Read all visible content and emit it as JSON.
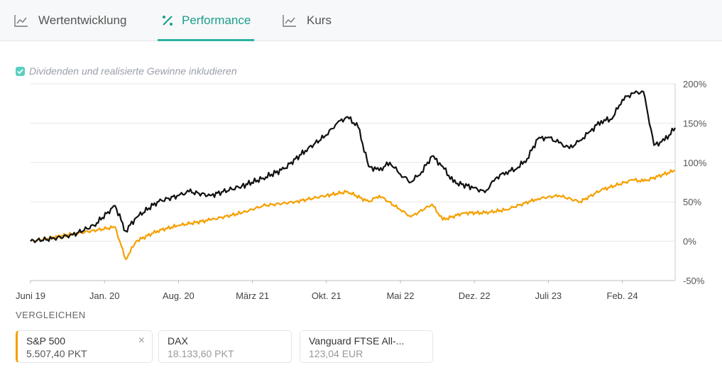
{
  "tabs": [
    {
      "label": "Wertentwicklung",
      "icon": "line-chart-icon"
    },
    {
      "label": "Performance",
      "icon": "percent-icon",
      "active": true
    },
    {
      "label": "Kurs",
      "icon": "line-chart-icon"
    }
  ],
  "checkbox": {
    "label": "Dividenden und realisierte Gewinne inkludieren",
    "checked": true
  },
  "compare": {
    "title": "VERGLEICHEN",
    "items": [
      {
        "name": "S&P 500",
        "value": "5.507,40 PKT",
        "selected": true,
        "color": "#f5a000"
      },
      {
        "name": "DAX",
        "value": "18.133,60 PKT"
      },
      {
        "name": "Vanguard FTSE All-...",
        "value": "123,04 EUR"
      }
    ]
  },
  "chart_data": {
    "type": "line",
    "x_ticks": [
      {
        "date": "2019-06",
        "label": "Juni 19"
      },
      {
        "date": "2020-01",
        "label": "Jan. 20"
      },
      {
        "date": "2020-08",
        "label": "Aug. 20"
      },
      {
        "date": "2021-03",
        "label": "März 21"
      },
      {
        "date": "2021-10",
        "label": "Okt. 21"
      },
      {
        "date": "2022-05",
        "label": "Mai 22"
      },
      {
        "date": "2022-12",
        "label": "Dez. 22"
      },
      {
        "date": "2023-07",
        "label": "Juli 23"
      },
      {
        "date": "2024-02",
        "label": "Feb. 24"
      }
    ],
    "y_ticks": [
      200,
      150,
      100,
      50,
      0,
      -50
    ],
    "y_tick_labels": [
      "200%",
      "150%",
      "100%",
      "50%",
      "0%",
      "-50%"
    ],
    "ylim": [
      -50,
      200
    ],
    "xlim": [
      "2019-06",
      "2024-07"
    ],
    "grid": true,
    "series": [
      {
        "color": "#111111",
        "points": [
          [
            "2019-06",
            0
          ],
          [
            "2019-08",
            3
          ],
          [
            "2019-10",
            8
          ],
          [
            "2019-12",
            20
          ],
          [
            "2020-02",
            45
          ],
          [
            "2020-03",
            13
          ],
          [
            "2020-04",
            30
          ],
          [
            "2020-06",
            50
          ],
          [
            "2020-08",
            58
          ],
          [
            "2020-09",
            63
          ],
          [
            "2020-11",
            58
          ],
          [
            "2021-02",
            70
          ],
          [
            "2021-04",
            80
          ],
          [
            "2021-06",
            92
          ],
          [
            "2021-08",
            115
          ],
          [
            "2021-10",
            135
          ],
          [
            "2021-11",
            150
          ],
          [
            "2021-12",
            158
          ],
          [
            "2022-01",
            145
          ],
          [
            "2022-02",
            95
          ],
          [
            "2022-03",
            90
          ],
          [
            "2022-04",
            100
          ],
          [
            "2022-05",
            85
          ],
          [
            "2022-06",
            75
          ],
          [
            "2022-07",
            88
          ],
          [
            "2022-08",
            108
          ],
          [
            "2022-09",
            95
          ],
          [
            "2022-10",
            75
          ],
          [
            "2022-12",
            68
          ],
          [
            "2023-01",
            62
          ],
          [
            "2023-02",
            80
          ],
          [
            "2023-03",
            88
          ],
          [
            "2023-04",
            92
          ],
          [
            "2023-05",
            105
          ],
          [
            "2023-06",
            130
          ],
          [
            "2023-07",
            132
          ],
          [
            "2023-08",
            125
          ],
          [
            "2023-09",
            118
          ],
          [
            "2023-10",
            128
          ],
          [
            "2023-11",
            140
          ],
          [
            "2023-12",
            153
          ],
          [
            "2024-01",
            155
          ],
          [
            "2024-02",
            180
          ],
          [
            "2024-03",
            188
          ],
          [
            "2024-04",
            190
          ],
          [
            "2024-05",
            122
          ],
          [
            "2024-06",
            128
          ],
          [
            "2024-07",
            144
          ]
        ]
      },
      {
        "name": "S&P 500",
        "color": "#f5a000",
        "points": [
          [
            "2019-06",
            0
          ],
          [
            "2019-10",
            9
          ],
          [
            "2020-02",
            18
          ],
          [
            "2020-03",
            -23
          ],
          [
            "2020-04",
            0
          ],
          [
            "2020-06",
            13
          ],
          [
            "2020-08",
            20
          ],
          [
            "2020-11",
            27
          ],
          [
            "2021-02",
            36
          ],
          [
            "2021-04",
            45
          ],
          [
            "2021-07",
            50
          ],
          [
            "2021-10",
            58
          ],
          [
            "2021-12",
            63
          ],
          [
            "2022-02",
            50
          ],
          [
            "2022-03",
            58
          ],
          [
            "2022-05",
            40
          ],
          [
            "2022-06",
            31
          ],
          [
            "2022-08",
            47
          ],
          [
            "2022-09",
            27
          ],
          [
            "2022-11",
            36
          ],
          [
            "2023-01",
            36
          ],
          [
            "2023-03",
            40
          ],
          [
            "2023-06",
            54
          ],
          [
            "2023-08",
            58
          ],
          [
            "2023-10",
            50
          ],
          [
            "2023-12",
            65
          ],
          [
            "2024-03",
            78
          ],
          [
            "2024-04",
            76
          ],
          [
            "2024-07",
            90
          ]
        ]
      }
    ]
  }
}
